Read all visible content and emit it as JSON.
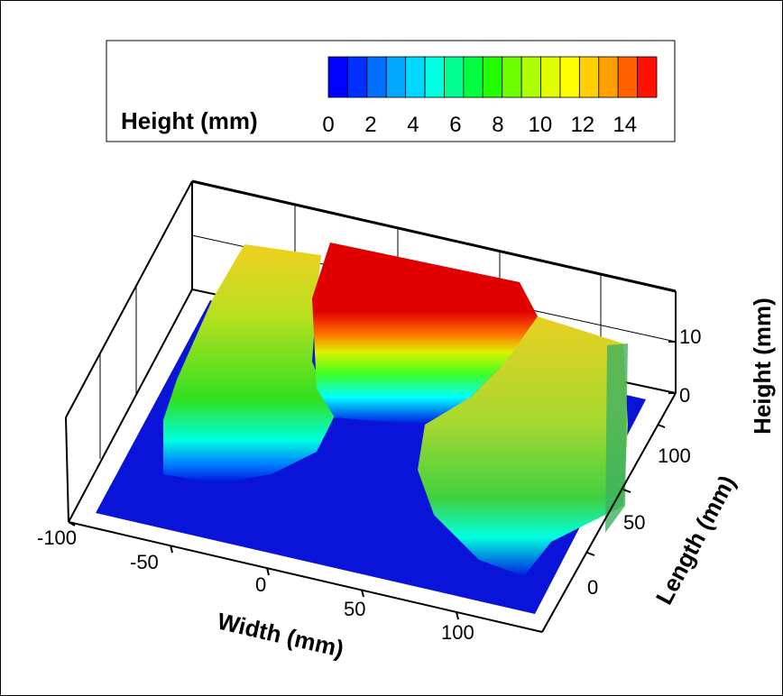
{
  "chart_data": {
    "type": "surface",
    "legend": {
      "title": "Height (mm)",
      "placement": "top",
      "ticks": [
        "0",
        "2",
        "4",
        "6",
        "8",
        "10",
        "12",
        "14"
      ],
      "range": [
        0,
        15.5
      ],
      "colors": [
        "#0000ff",
        "#0030ff",
        "#0070ff",
        "#00a8ff",
        "#00d8ff",
        "#00ffe0",
        "#00ff90",
        "#00ff40",
        "#20ff00",
        "#70ff00",
        "#b0ff00",
        "#e0ff00",
        "#ffff00",
        "#ffd000",
        "#ffa000",
        "#ff6000",
        "#ff1000"
      ]
    },
    "x_axis": {
      "label": "Width (mm)",
      "ticks": [
        "-100",
        "-50",
        "0",
        "50",
        "100"
      ]
    },
    "y_axis": {
      "label": "Length (mm)",
      "ticks": [
        "0",
        "50",
        "100"
      ]
    },
    "z_axis": {
      "label": "Height (mm)",
      "ticks": [
        "0",
        "10"
      ]
    },
    "surface": {
      "base_height": 0,
      "left_ridge_height": 11,
      "right_ridge_height": 11,
      "center_mound_height": 15
    }
  }
}
